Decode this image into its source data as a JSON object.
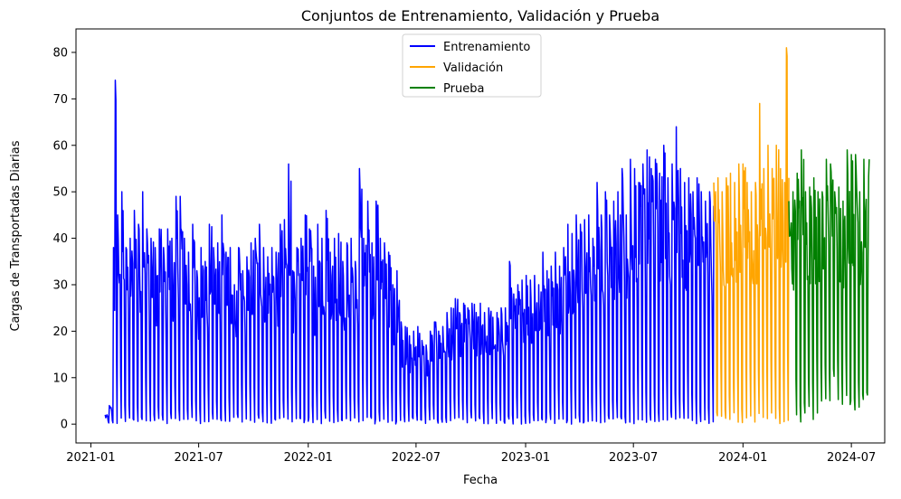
{
  "chart_data": {
    "type": "line",
    "title": "Conjuntos de Entrenamiento, Validación y Prueba",
    "xlabel": "Fecha",
    "ylabel": "Cargas de Transportadas Diarias",
    "x_ticks": [
      "2021-01",
      "2021-07",
      "2022-01",
      "2022-07",
      "2023-01",
      "2023-07",
      "2024-01",
      "2024-07"
    ],
    "y_ticks": [
      0,
      10,
      20,
      30,
      40,
      50,
      60,
      70,
      80
    ],
    "ylim": [
      -4.05,
      85.05
    ],
    "xlim": [
      "2020-12-07",
      "2024-08-26"
    ],
    "grid": false,
    "legend_position": "top-center",
    "weekly_pattern_note_removed": true,
    "series": [
      {
        "name": "Entrenamiento",
        "color": "#0000ff",
        "start": "2021-01-25",
        "end": "2023-11-13",
        "daily_envelope": [
          [
            "2021-01-25",
            2,
            0
          ],
          [
            "2021-02-01",
            4,
            0
          ],
          [
            "2021-02-08",
            38,
            0
          ],
          [
            "2021-02-11",
            74,
            0
          ],
          [
            "2021-02-15",
            45,
            0
          ],
          [
            "2021-02-22",
            50,
            0
          ],
          [
            "2021-03-01",
            38,
            0
          ],
          [
            "2021-03-08",
            40,
            0
          ],
          [
            "2021-03-15",
            46,
            0
          ],
          [
            "2021-03-22",
            43,
            0
          ],
          [
            "2021-03-29",
            50,
            0
          ],
          [
            "2021-04-05",
            42,
            0
          ],
          [
            "2021-04-12",
            40,
            0
          ],
          [
            "2021-04-19",
            38,
            0
          ],
          [
            "2021-04-26",
            42,
            0
          ],
          [
            "2021-05-03",
            38,
            0
          ],
          [
            "2021-05-10",
            42,
            0
          ],
          [
            "2021-05-17",
            40,
            0
          ],
          [
            "2021-05-24",
            49,
            0
          ],
          [
            "2021-05-31",
            49,
            0
          ],
          [
            "2021-06-07",
            40,
            0
          ],
          [
            "2021-06-14",
            37,
            0
          ],
          [
            "2021-06-21",
            43,
            0
          ],
          [
            "2021-06-28",
            33,
            0
          ],
          [
            "2021-07-05",
            38,
            0
          ],
          [
            "2021-07-12",
            35,
            0
          ],
          [
            "2021-07-19",
            43,
            0
          ],
          [
            "2021-07-26",
            38,
            0
          ],
          [
            "2021-08-02",
            39,
            0
          ],
          [
            "2021-08-09",
            45,
            0
          ],
          [
            "2021-08-16",
            37,
            0
          ],
          [
            "2021-08-23",
            38,
            0
          ],
          [
            "2021-08-30",
            30,
            0
          ],
          [
            "2021-09-06",
            38,
            0
          ],
          [
            "2021-09-13",
            33,
            0
          ],
          [
            "2021-09-20",
            36,
            0
          ],
          [
            "2021-09-27",
            39,
            0
          ],
          [
            "2021-10-04",
            40,
            0
          ],
          [
            "2021-10-11",
            43,
            0
          ],
          [
            "2021-10-18",
            38,
            0
          ],
          [
            "2021-10-25",
            36,
            0
          ],
          [
            "2021-11-01",
            38,
            0
          ],
          [
            "2021-11-08",
            37,
            0
          ],
          [
            "2021-11-15",
            43,
            0
          ],
          [
            "2021-11-22",
            44,
            0
          ],
          [
            "2021-11-29",
            56,
            0
          ],
          [
            "2021-12-06",
            33,
            0
          ],
          [
            "2021-12-13",
            38,
            0
          ],
          [
            "2021-12-20",
            40,
            0
          ],
          [
            "2021-12-27",
            45,
            0
          ],
          [
            "2022-01-03",
            42,
            0
          ],
          [
            "2022-01-10",
            34,
            0
          ],
          [
            "2022-01-17",
            43,
            0
          ],
          [
            "2022-01-24",
            40,
            0
          ],
          [
            "2022-01-31",
            46,
            0
          ],
          [
            "2022-02-07",
            37,
            0
          ],
          [
            "2022-02-14",
            40,
            0
          ],
          [
            "2022-02-21",
            41,
            0
          ],
          [
            "2022-02-28",
            35,
            0
          ],
          [
            "2022-03-07",
            39,
            0
          ],
          [
            "2022-03-14",
            40,
            0
          ],
          [
            "2022-03-21",
            35,
            0
          ],
          [
            "2022-03-28",
            55,
            0
          ],
          [
            "2022-04-04",
            40,
            0
          ],
          [
            "2022-04-11",
            48,
            0
          ],
          [
            "2022-04-18",
            39,
            0
          ],
          [
            "2022-04-25",
            48,
            0
          ],
          [
            "2022-05-02",
            40,
            0
          ],
          [
            "2022-05-09",
            39,
            0
          ],
          [
            "2022-05-16",
            37,
            0
          ],
          [
            "2022-05-23",
            30,
            0
          ],
          [
            "2022-05-30",
            33,
            0
          ],
          [
            "2022-06-06",
            22,
            0
          ],
          [
            "2022-06-13",
            21,
            0
          ],
          [
            "2022-06-20",
            19,
            0
          ],
          [
            "2022-06-27",
            20,
            0
          ],
          [
            "2022-07-04",
            21,
            0
          ],
          [
            "2022-07-11",
            18,
            0
          ],
          [
            "2022-07-18",
            17,
            0
          ],
          [
            "2022-07-25",
            20,
            0
          ],
          [
            "2022-08-01",
            22,
            0
          ],
          [
            "2022-08-08",
            20,
            0
          ],
          [
            "2022-08-15",
            21,
            0
          ],
          [
            "2022-08-22",
            24,
            0
          ],
          [
            "2022-08-29",
            25,
            0
          ],
          [
            "2022-09-05",
            27,
            0
          ],
          [
            "2022-09-12",
            24,
            0
          ],
          [
            "2022-09-19",
            26,
            0
          ],
          [
            "2022-09-26",
            25,
            0
          ],
          [
            "2022-10-03",
            26,
            0
          ],
          [
            "2022-10-10",
            24,
            0
          ],
          [
            "2022-10-17",
            26,
            0
          ],
          [
            "2022-10-24",
            24,
            0
          ],
          [
            "2022-10-31",
            25,
            0
          ],
          [
            "2022-11-07",
            23,
            0
          ],
          [
            "2022-11-14",
            24,
            0
          ],
          [
            "2022-11-21",
            25,
            0
          ],
          [
            "2022-11-28",
            25,
            0
          ],
          [
            "2022-12-05",
            35,
            0
          ],
          [
            "2022-12-12",
            28,
            0
          ],
          [
            "2022-12-19",
            30,
            0
          ],
          [
            "2022-12-26",
            31,
            0
          ],
          [
            "2023-01-02",
            32,
            0
          ],
          [
            "2023-01-09",
            31,
            0
          ],
          [
            "2023-01-16",
            32,
            0
          ],
          [
            "2023-01-23",
            30,
            0
          ],
          [
            "2023-01-30",
            37,
            0
          ],
          [
            "2023-02-06",
            33,
            0
          ],
          [
            "2023-02-13",
            34,
            0
          ],
          [
            "2023-02-20",
            37,
            0
          ],
          [
            "2023-02-27",
            34,
            0
          ],
          [
            "2023-03-06",
            38,
            0
          ],
          [
            "2023-03-13",
            43,
            0
          ],
          [
            "2023-03-20",
            41,
            0
          ],
          [
            "2023-03-27",
            45,
            0
          ],
          [
            "2023-04-03",
            43,
            0
          ],
          [
            "2023-04-10",
            44,
            0
          ],
          [
            "2023-04-17",
            45,
            0
          ],
          [
            "2023-04-24",
            40,
            0
          ],
          [
            "2023-05-01",
            52,
            0
          ],
          [
            "2023-05-08",
            45,
            0
          ],
          [
            "2023-05-15",
            50,
            0
          ],
          [
            "2023-05-22",
            45,
            0
          ],
          [
            "2023-05-29",
            48,
            0
          ],
          [
            "2023-06-05",
            50,
            0
          ],
          [
            "2023-06-12",
            55,
            0
          ],
          [
            "2023-06-19",
            45,
            0
          ],
          [
            "2023-06-26",
            57,
            0
          ],
          [
            "2023-07-03",
            55,
            0
          ],
          [
            "2023-07-10",
            52,
            0
          ],
          [
            "2023-07-17",
            56,
            0
          ],
          [
            "2023-07-24",
            59,
            0
          ],
          [
            "2023-07-31",
            55,
            0
          ],
          [
            "2023-08-07",
            57,
            0
          ],
          [
            "2023-08-14",
            54,
            0
          ],
          [
            "2023-08-21",
            60,
            0
          ],
          [
            "2023-08-28",
            53,
            0
          ],
          [
            "2023-09-04",
            56,
            0
          ],
          [
            "2023-09-11",
            64,
            0
          ],
          [
            "2023-09-18",
            55,
            0
          ],
          [
            "2023-09-25",
            52,
            0
          ],
          [
            "2023-10-02",
            53,
            0
          ],
          [
            "2023-10-09",
            50,
            0
          ],
          [
            "2023-10-16",
            53,
            0
          ],
          [
            "2023-10-23",
            50,
            0
          ],
          [
            "2023-10-30",
            48,
            0
          ],
          [
            "2023-11-06",
            50,
            0
          ],
          [
            "2023-11-13",
            47,
            0
          ]
        ]
      },
      {
        "name": "Validación",
        "color": "#ffa500",
        "start": "2023-11-13",
        "end": "2024-03-18",
        "daily_envelope": [
          [
            "2023-11-13",
            52,
            1
          ],
          [
            "2023-11-20",
            53,
            1
          ],
          [
            "2023-11-27",
            50,
            0
          ],
          [
            "2023-12-04",
            53,
            1
          ],
          [
            "2023-12-11",
            54,
            1
          ],
          [
            "2023-12-18",
            52,
            0
          ],
          [
            "2023-12-25",
            56,
            0
          ],
          [
            "2024-01-01",
            56,
            0
          ],
          [
            "2024-01-08",
            52,
            1
          ],
          [
            "2024-01-15",
            50,
            0
          ],
          [
            "2024-01-22",
            52,
            1
          ],
          [
            "2024-01-29",
            69,
            0
          ],
          [
            "2024-02-05",
            55,
            0
          ],
          [
            "2024-02-12",
            60,
            1
          ],
          [
            "2024-02-19",
            55,
            0
          ],
          [
            "2024-02-26",
            60,
            0
          ],
          [
            "2024-03-04",
            55,
            0
          ],
          [
            "2024-03-11",
            52,
            1
          ],
          [
            "2024-03-14",
            81,
            0
          ],
          [
            "2024-03-18",
            53,
            29
          ]
        ]
      },
      {
        "name": "Prueba",
        "color": "#008000",
        "start": "2024-03-18",
        "end": "2024-07-31",
        "daily_envelope": [
          [
            "2024-03-18",
            48,
            30
          ],
          [
            "2024-03-25",
            50,
            2
          ],
          [
            "2024-04-01",
            54,
            0
          ],
          [
            "2024-04-08",
            59,
            2
          ],
          [
            "2024-04-15",
            50,
            3
          ],
          [
            "2024-04-22",
            51,
            1
          ],
          [
            "2024-04-29",
            53,
            2
          ],
          [
            "2024-05-06",
            50,
            4
          ],
          [
            "2024-05-13",
            50,
            5
          ],
          [
            "2024-05-20",
            57,
            5
          ],
          [
            "2024-05-27",
            56,
            10
          ],
          [
            "2024-06-03",
            50,
            5
          ],
          [
            "2024-06-10",
            51,
            4
          ],
          [
            "2024-06-17",
            48,
            5
          ],
          [
            "2024-06-24",
            59,
            4
          ],
          [
            "2024-07-01",
            58,
            3
          ],
          [
            "2024-07-08",
            58,
            3
          ],
          [
            "2024-07-15",
            50,
            5
          ],
          [
            "2024-07-22",
            57,
            5
          ],
          [
            "2024-07-31",
            57,
            1
          ]
        ]
      }
    ]
  }
}
